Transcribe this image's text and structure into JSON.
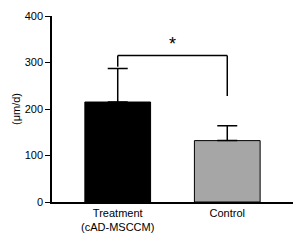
{
  "chart_data": {
    "type": "bar",
    "categories": [
      "Treatment\n(cAD-MSCCM)",
      "Control"
    ],
    "values": [
      215,
      132
    ],
    "errors": [
      72,
      32
    ],
    "colors": [
      "#000000",
      "#a6a6a6"
    ],
    "y_label": "(μm/d)",
    "ylim": [
      0,
      400
    ],
    "yticks": [
      0,
      100,
      200,
      300,
      400
    ],
    "grid": false,
    "annotations": [
      {
        "text": "*",
        "between": [
          "Treatment\n(cAD-MSCCM)",
          "Control"
        ]
      }
    ]
  }
}
